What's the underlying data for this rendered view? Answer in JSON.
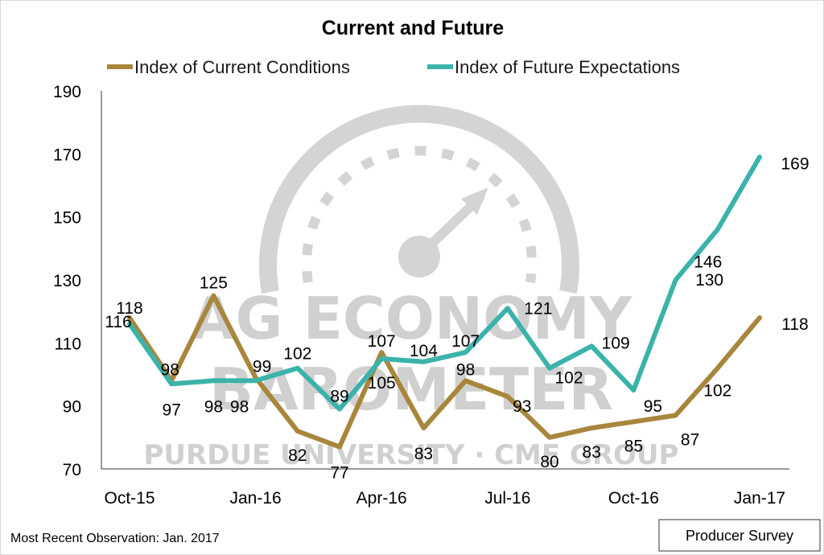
{
  "chart_data": {
    "type": "line",
    "title": "Current and Future",
    "x": [
      "Oct-15",
      "Nov-15",
      "Dec-15",
      "Jan-16",
      "Feb-16",
      "Mar-16",
      "Apr-16",
      "May-16",
      "Jun-16",
      "Jul-16",
      "Aug-16",
      "Sep-16",
      "Oct-16",
      "Nov-16",
      "Dec-16",
      "Jan-17"
    ],
    "x_tick_labels": [
      "Oct-15",
      "Jan-16",
      "Apr-16",
      "Jul-16",
      "Oct-16",
      "Jan-17"
    ],
    "ylim": [
      70,
      190
    ],
    "y_ticks": [
      70,
      90,
      110,
      130,
      150,
      170,
      190
    ],
    "grid": false,
    "legend_position": "top",
    "series": [
      {
        "name": "Index of Current Conditions",
        "color": "#a8863c",
        "values": [
          118,
          98,
          125,
          99,
          82,
          77,
          107,
          83,
          98,
          93,
          80,
          83,
          85,
          87,
          102,
          118
        ]
      },
      {
        "name": "Index of Future Expectations",
        "color": "#3bb3aa",
        "values": [
          116,
          97,
          98,
          98,
          102,
          89,
          105,
          104,
          107,
          121,
          102,
          109,
          95,
          130,
          146,
          169
        ]
      }
    ]
  },
  "footnote": "Most Recent Observation: Jan. 2017",
  "badge": "Producer Survey",
  "watermark": {
    "line1": "AG ECONOMY",
    "line2": "BAROMETER",
    "line3": "PURDUE UNIVERSITY · CME GROUP",
    "icon": "gauge-icon"
  }
}
